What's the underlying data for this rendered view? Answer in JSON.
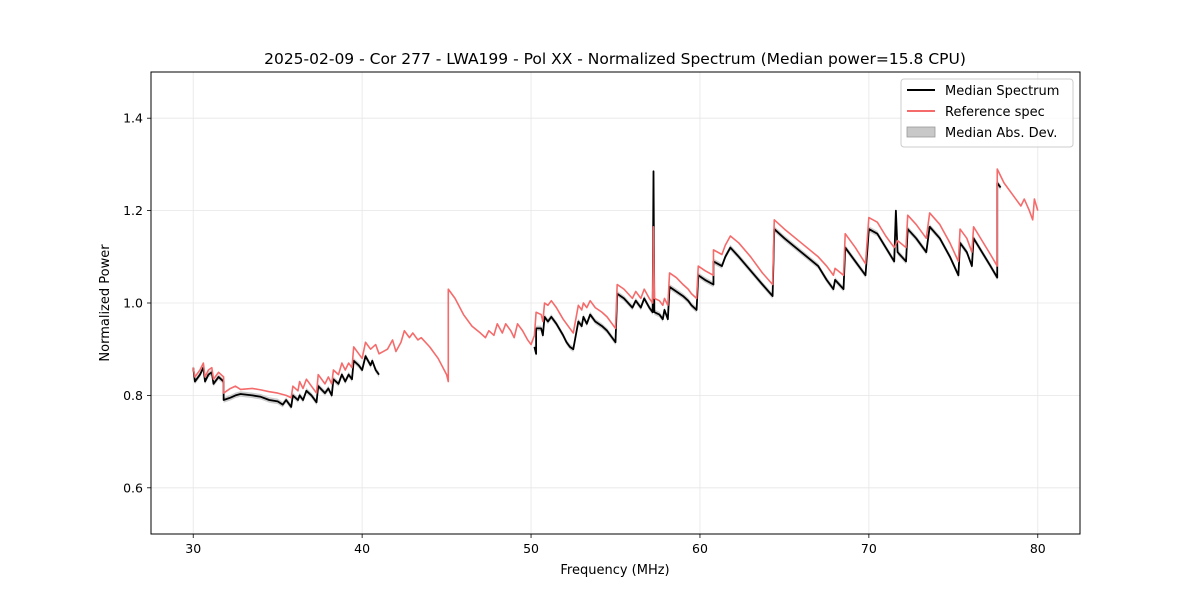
{
  "chart_data": {
    "type": "line",
    "title": "2025-02-09 - Cor 277 - LWA199 - Pol XX - Normalized Spectrum (Median power=15.8 CPU)",
    "xlabel": "Frequency (MHz)",
    "ylabel": "Normalized Power",
    "xlim": [
      27.5,
      82.5
    ],
    "ylim": [
      0.5,
      1.5
    ],
    "xticks": [
      30,
      40,
      50,
      60,
      70,
      80
    ],
    "yticks": [
      0.6,
      0.8,
      1.0,
      1.2,
      1.4
    ],
    "grid": true,
    "legend_position": "top-right",
    "colors": {
      "median": "#000000",
      "reference": "#f56b6b",
      "mad": "#c8c8c8"
    },
    "series": [
      {
        "name": "Median Spectrum",
        "kind": "line",
        "points": [
          [
            30.0,
            0.86
          ],
          [
            30.1,
            0.83
          ],
          [
            30.4,
            0.845
          ],
          [
            30.6,
            0.86
          ],
          [
            30.7,
            0.83
          ],
          [
            30.9,
            0.845
          ],
          [
            31.1,
            0.85
          ],
          [
            31.2,
            0.825
          ],
          [
            31.5,
            0.84
          ],
          [
            31.8,
            0.83
          ],
          [
            31.8,
            0.79
          ],
          [
            32.2,
            0.795
          ],
          [
            32.5,
            0.8
          ],
          [
            32.8,
            0.803
          ],
          [
            33.5,
            0.8
          ],
          [
            34.0,
            0.797
          ],
          [
            34.5,
            0.79
          ],
          [
            35.0,
            0.787
          ],
          [
            35.3,
            0.78
          ],
          [
            35.5,
            0.79
          ],
          [
            35.8,
            0.775
          ],
          [
            35.9,
            0.8
          ],
          [
            36.2,
            0.79
          ],
          [
            36.3,
            0.8
          ],
          [
            36.5,
            0.79
          ],
          [
            36.7,
            0.81
          ],
          [
            37.0,
            0.8
          ],
          [
            37.3,
            0.785
          ],
          [
            37.4,
            0.82
          ],
          [
            37.8,
            0.805
          ],
          [
            38.0,
            0.815
          ],
          [
            38.2,
            0.8
          ],
          [
            38.3,
            0.835
          ],
          [
            38.6,
            0.825
          ],
          [
            38.8,
            0.845
          ],
          [
            39.0,
            0.83
          ],
          [
            39.2,
            0.845
          ],
          [
            39.4,
            0.835
          ],
          [
            39.5,
            0.875
          ],
          [
            39.8,
            0.865
          ],
          [
            40.0,
            0.855
          ],
          [
            40.2,
            0.885
          ],
          [
            40.5,
            0.865
          ],
          [
            40.6,
            0.875
          ],
          [
            40.8,
            0.855
          ],
          [
            41.0,
            0.845
          ],
          null,
          [
            50.2,
            0.905
          ],
          [
            50.3,
            0.89
          ],
          [
            50.3,
            0.945
          ],
          [
            50.6,
            0.945
          ],
          [
            50.7,
            0.93
          ],
          [
            50.8,
            0.97
          ],
          [
            51.0,
            0.96
          ],
          [
            51.2,
            0.97
          ],
          [
            51.5,
            0.955
          ],
          [
            51.9,
            0.93
          ],
          [
            52.1,
            0.915
          ],
          [
            52.3,
            0.905
          ],
          [
            52.5,
            0.9
          ],
          [
            52.8,
            0.96
          ],
          [
            53.0,
            0.95
          ],
          [
            53.1,
            0.97
          ],
          [
            53.3,
            0.955
          ],
          [
            53.5,
            0.975
          ],
          [
            53.8,
            0.96
          ],
          [
            54.2,
            0.95
          ],
          [
            54.5,
            0.94
          ],
          [
            55.0,
            0.915
          ],
          [
            55.1,
            1.02
          ],
          [
            55.5,
            1.01
          ],
          [
            56.0,
            0.99
          ],
          [
            56.2,
            1.005
          ],
          [
            56.5,
            0.99
          ],
          [
            56.7,
            1.01
          ],
          [
            57.0,
            0.99
          ],
          [
            57.2,
            0.98
          ],
          [
            57.25,
            1.285
          ],
          [
            57.3,
            0.98
          ],
          [
            57.6,
            0.975
          ],
          [
            57.8,
            0.965
          ],
          [
            57.9,
            0.985
          ],
          [
            58.1,
            0.965
          ],
          [
            58.2,
            1.035
          ],
          [
            58.6,
            1.025
          ],
          [
            59.0,
            1.015
          ],
          [
            59.3,
            1.005
          ],
          [
            59.5,
            0.995
          ],
          [
            59.8,
            0.985
          ],
          [
            59.9,
            1.06
          ],
          [
            60.3,
            1.05
          ],
          [
            60.8,
            1.04
          ],
          [
            60.8,
            1.09
          ],
          [
            61.3,
            1.08
          ],
          [
            61.5,
            1.1
          ],
          [
            61.8,
            1.12
          ],
          [
            62.3,
            1.1
          ],
          [
            63.0,
            1.07
          ],
          [
            63.7,
            1.04
          ],
          [
            64.3,
            1.015
          ],
          [
            64.4,
            1.16
          ],
          [
            65.0,
            1.14
          ],
          [
            66.0,
            1.11
          ],
          [
            67.0,
            1.08
          ],
          [
            67.5,
            1.05
          ],
          [
            67.9,
            1.03
          ],
          [
            68.0,
            1.05
          ],
          [
            68.5,
            1.03
          ],
          [
            68.6,
            1.12
          ],
          [
            69.2,
            1.09
          ],
          [
            69.8,
            1.06
          ],
          [
            70.0,
            1.16
          ],
          [
            70.5,
            1.15
          ],
          [
            71.0,
            1.12
          ],
          [
            71.5,
            1.09
          ],
          [
            71.6,
            1.2
          ],
          [
            71.7,
            1.11
          ],
          [
            72.2,
            1.09
          ],
          [
            72.3,
            1.16
          ],
          [
            72.8,
            1.14
          ],
          [
            73.0,
            1.13
          ],
          [
            73.4,
            1.11
          ],
          [
            73.6,
            1.165
          ],
          [
            74.2,
            1.14
          ],
          [
            74.8,
            1.1
          ],
          [
            75.3,
            1.06
          ],
          [
            75.4,
            1.13
          ],
          [
            75.8,
            1.11
          ],
          [
            76.1,
            1.08
          ],
          [
            76.2,
            1.14
          ],
          [
            76.7,
            1.11
          ],
          [
            77.2,
            1.08
          ],
          [
            77.6,
            1.055
          ],
          [
            77.6,
            1.26
          ],
          [
            77.8,
            1.25
          ]
        ]
      },
      {
        "name": "Reference spec",
        "kind": "line",
        "points": [
          [
            30.0,
            0.86
          ],
          [
            30.1,
            0.84
          ],
          [
            30.4,
            0.855
          ],
          [
            30.6,
            0.87
          ],
          [
            30.7,
            0.84
          ],
          [
            30.9,
            0.855
          ],
          [
            31.1,
            0.86
          ],
          [
            31.2,
            0.835
          ],
          [
            31.5,
            0.85
          ],
          [
            31.8,
            0.84
          ],
          [
            31.8,
            0.805
          ],
          [
            32.2,
            0.815
          ],
          [
            32.5,
            0.82
          ],
          [
            32.8,
            0.813
          ],
          [
            33.5,
            0.815
          ],
          [
            34.0,
            0.812
          ],
          [
            34.5,
            0.808
          ],
          [
            35.0,
            0.805
          ],
          [
            35.5,
            0.8
          ],
          [
            35.8,
            0.795
          ],
          [
            35.9,
            0.82
          ],
          [
            36.2,
            0.81
          ],
          [
            36.3,
            0.83
          ],
          [
            36.5,
            0.815
          ],
          [
            36.7,
            0.835
          ],
          [
            37.0,
            0.82
          ],
          [
            37.3,
            0.805
          ],
          [
            37.4,
            0.845
          ],
          [
            37.8,
            0.825
          ],
          [
            38.0,
            0.84
          ],
          [
            38.2,
            0.825
          ],
          [
            38.3,
            0.855
          ],
          [
            38.6,
            0.845
          ],
          [
            38.8,
            0.87
          ],
          [
            39.0,
            0.855
          ],
          [
            39.2,
            0.87
          ],
          [
            39.4,
            0.86
          ],
          [
            39.5,
            0.905
          ],
          [
            39.8,
            0.89
          ],
          [
            40.0,
            0.88
          ],
          [
            40.2,
            0.915
          ],
          [
            40.5,
            0.9
          ],
          [
            40.8,
            0.91
          ],
          [
            41.0,
            0.89
          ],
          [
            41.5,
            0.9
          ],
          [
            41.8,
            0.92
          ],
          [
            42.0,
            0.895
          ],
          [
            42.3,
            0.915
          ],
          [
            42.5,
            0.94
          ],
          [
            42.8,
            0.925
          ],
          [
            43.0,
            0.935
          ],
          [
            43.3,
            0.92
          ],
          [
            43.5,
            0.925
          ],
          [
            44.0,
            0.905
          ],
          [
            44.5,
            0.88
          ],
          [
            45.0,
            0.845
          ],
          [
            45.1,
            0.83
          ],
          [
            45.1,
            1.03
          ],
          [
            45.5,
            1.01
          ],
          [
            46.0,
            0.975
          ],
          [
            46.5,
            0.95
          ],
          [
            47.0,
            0.935
          ],
          [
            47.3,
            0.925
          ],
          [
            47.5,
            0.94
          ],
          [
            47.8,
            0.93
          ],
          [
            48.0,
            0.955
          ],
          [
            48.3,
            0.935
          ],
          [
            48.5,
            0.955
          ],
          [
            48.8,
            0.94
          ],
          [
            49.0,
            0.925
          ],
          [
            49.2,
            0.955
          ],
          [
            49.5,
            0.94
          ],
          [
            49.8,
            0.92
          ],
          [
            50.0,
            0.91
          ],
          [
            50.2,
            0.93
          ],
          [
            50.3,
            0.98
          ],
          [
            50.6,
            0.975
          ],
          [
            50.7,
            0.96
          ],
          [
            50.8,
            1.0
          ],
          [
            51.0,
            0.995
          ],
          [
            51.2,
            1.005
          ],
          [
            51.5,
            0.99
          ],
          [
            51.9,
            0.965
          ],
          [
            52.3,
            0.945
          ],
          [
            52.5,
            0.935
          ],
          [
            52.8,
            0.995
          ],
          [
            53.0,
            0.985
          ],
          [
            53.1,
            1.0
          ],
          [
            53.3,
            0.99
          ],
          [
            53.5,
            1.005
          ],
          [
            53.8,
            0.99
          ],
          [
            54.2,
            0.98
          ],
          [
            54.5,
            0.97
          ],
          [
            55.0,
            0.945
          ],
          [
            55.1,
            1.04
          ],
          [
            55.5,
            1.03
          ],
          [
            56.0,
            1.01
          ],
          [
            56.2,
            1.025
          ],
          [
            56.5,
            1.01
          ],
          [
            56.7,
            1.03
          ],
          [
            57.0,
            1.01
          ],
          [
            57.2,
            1.0
          ],
          [
            57.25,
            1.165
          ],
          [
            57.3,
            1.01
          ],
          [
            57.6,
            1.005
          ],
          [
            57.8,
            0.995
          ],
          [
            57.9,
            1.01
          ],
          [
            58.1,
            0.995
          ],
          [
            58.2,
            1.065
          ],
          [
            58.6,
            1.055
          ],
          [
            59.0,
            1.04
          ],
          [
            59.3,
            1.03
          ],
          [
            59.5,
            1.02
          ],
          [
            59.8,
            1.01
          ],
          [
            59.9,
            1.08
          ],
          [
            60.3,
            1.07
          ],
          [
            60.8,
            1.06
          ],
          [
            60.8,
            1.115
          ],
          [
            61.3,
            1.105
          ],
          [
            61.5,
            1.125
          ],
          [
            61.8,
            1.145
          ],
          [
            62.3,
            1.13
          ],
          [
            63.0,
            1.1
          ],
          [
            63.7,
            1.065
          ],
          [
            64.3,
            1.04
          ],
          [
            64.4,
            1.18
          ],
          [
            65.0,
            1.16
          ],
          [
            66.0,
            1.13
          ],
          [
            67.0,
            1.1
          ],
          [
            67.5,
            1.08
          ],
          [
            67.9,
            1.06
          ],
          [
            68.0,
            1.075
          ],
          [
            68.5,
            1.06
          ],
          [
            68.6,
            1.15
          ],
          [
            69.2,
            1.12
          ],
          [
            69.8,
            1.085
          ],
          [
            70.0,
            1.185
          ],
          [
            70.5,
            1.175
          ],
          [
            71.0,
            1.145
          ],
          [
            71.5,
            1.12
          ],
          [
            71.7,
            1.135
          ],
          [
            72.2,
            1.12
          ],
          [
            72.3,
            1.19
          ],
          [
            72.8,
            1.17
          ],
          [
            73.0,
            1.16
          ],
          [
            73.4,
            1.14
          ],
          [
            73.6,
            1.195
          ],
          [
            74.2,
            1.17
          ],
          [
            74.8,
            1.13
          ],
          [
            75.3,
            1.09
          ],
          [
            75.4,
            1.16
          ],
          [
            75.8,
            1.14
          ],
          [
            76.1,
            1.11
          ],
          [
            76.2,
            1.165
          ],
          [
            76.7,
            1.135
          ],
          [
            77.2,
            1.105
          ],
          [
            77.6,
            1.08
          ],
          [
            77.6,
            1.29
          ],
          [
            78.0,
            1.26
          ],
          [
            78.5,
            1.235
          ],
          [
            79.0,
            1.21
          ],
          [
            79.2,
            1.225
          ],
          [
            79.5,
            1.2
          ],
          [
            79.7,
            1.18
          ],
          [
            79.8,
            1.225
          ],
          [
            80.0,
            1.2
          ]
        ]
      },
      {
        "name": "Median Abs. Dev.",
        "kind": "band",
        "note": "shaded +/- band around the median spectrum",
        "half_width": 0.006
      }
    ],
    "legend": {
      "entries": [
        "Median Spectrum",
        "Reference spec",
        "Median Abs. Dev."
      ]
    }
  }
}
